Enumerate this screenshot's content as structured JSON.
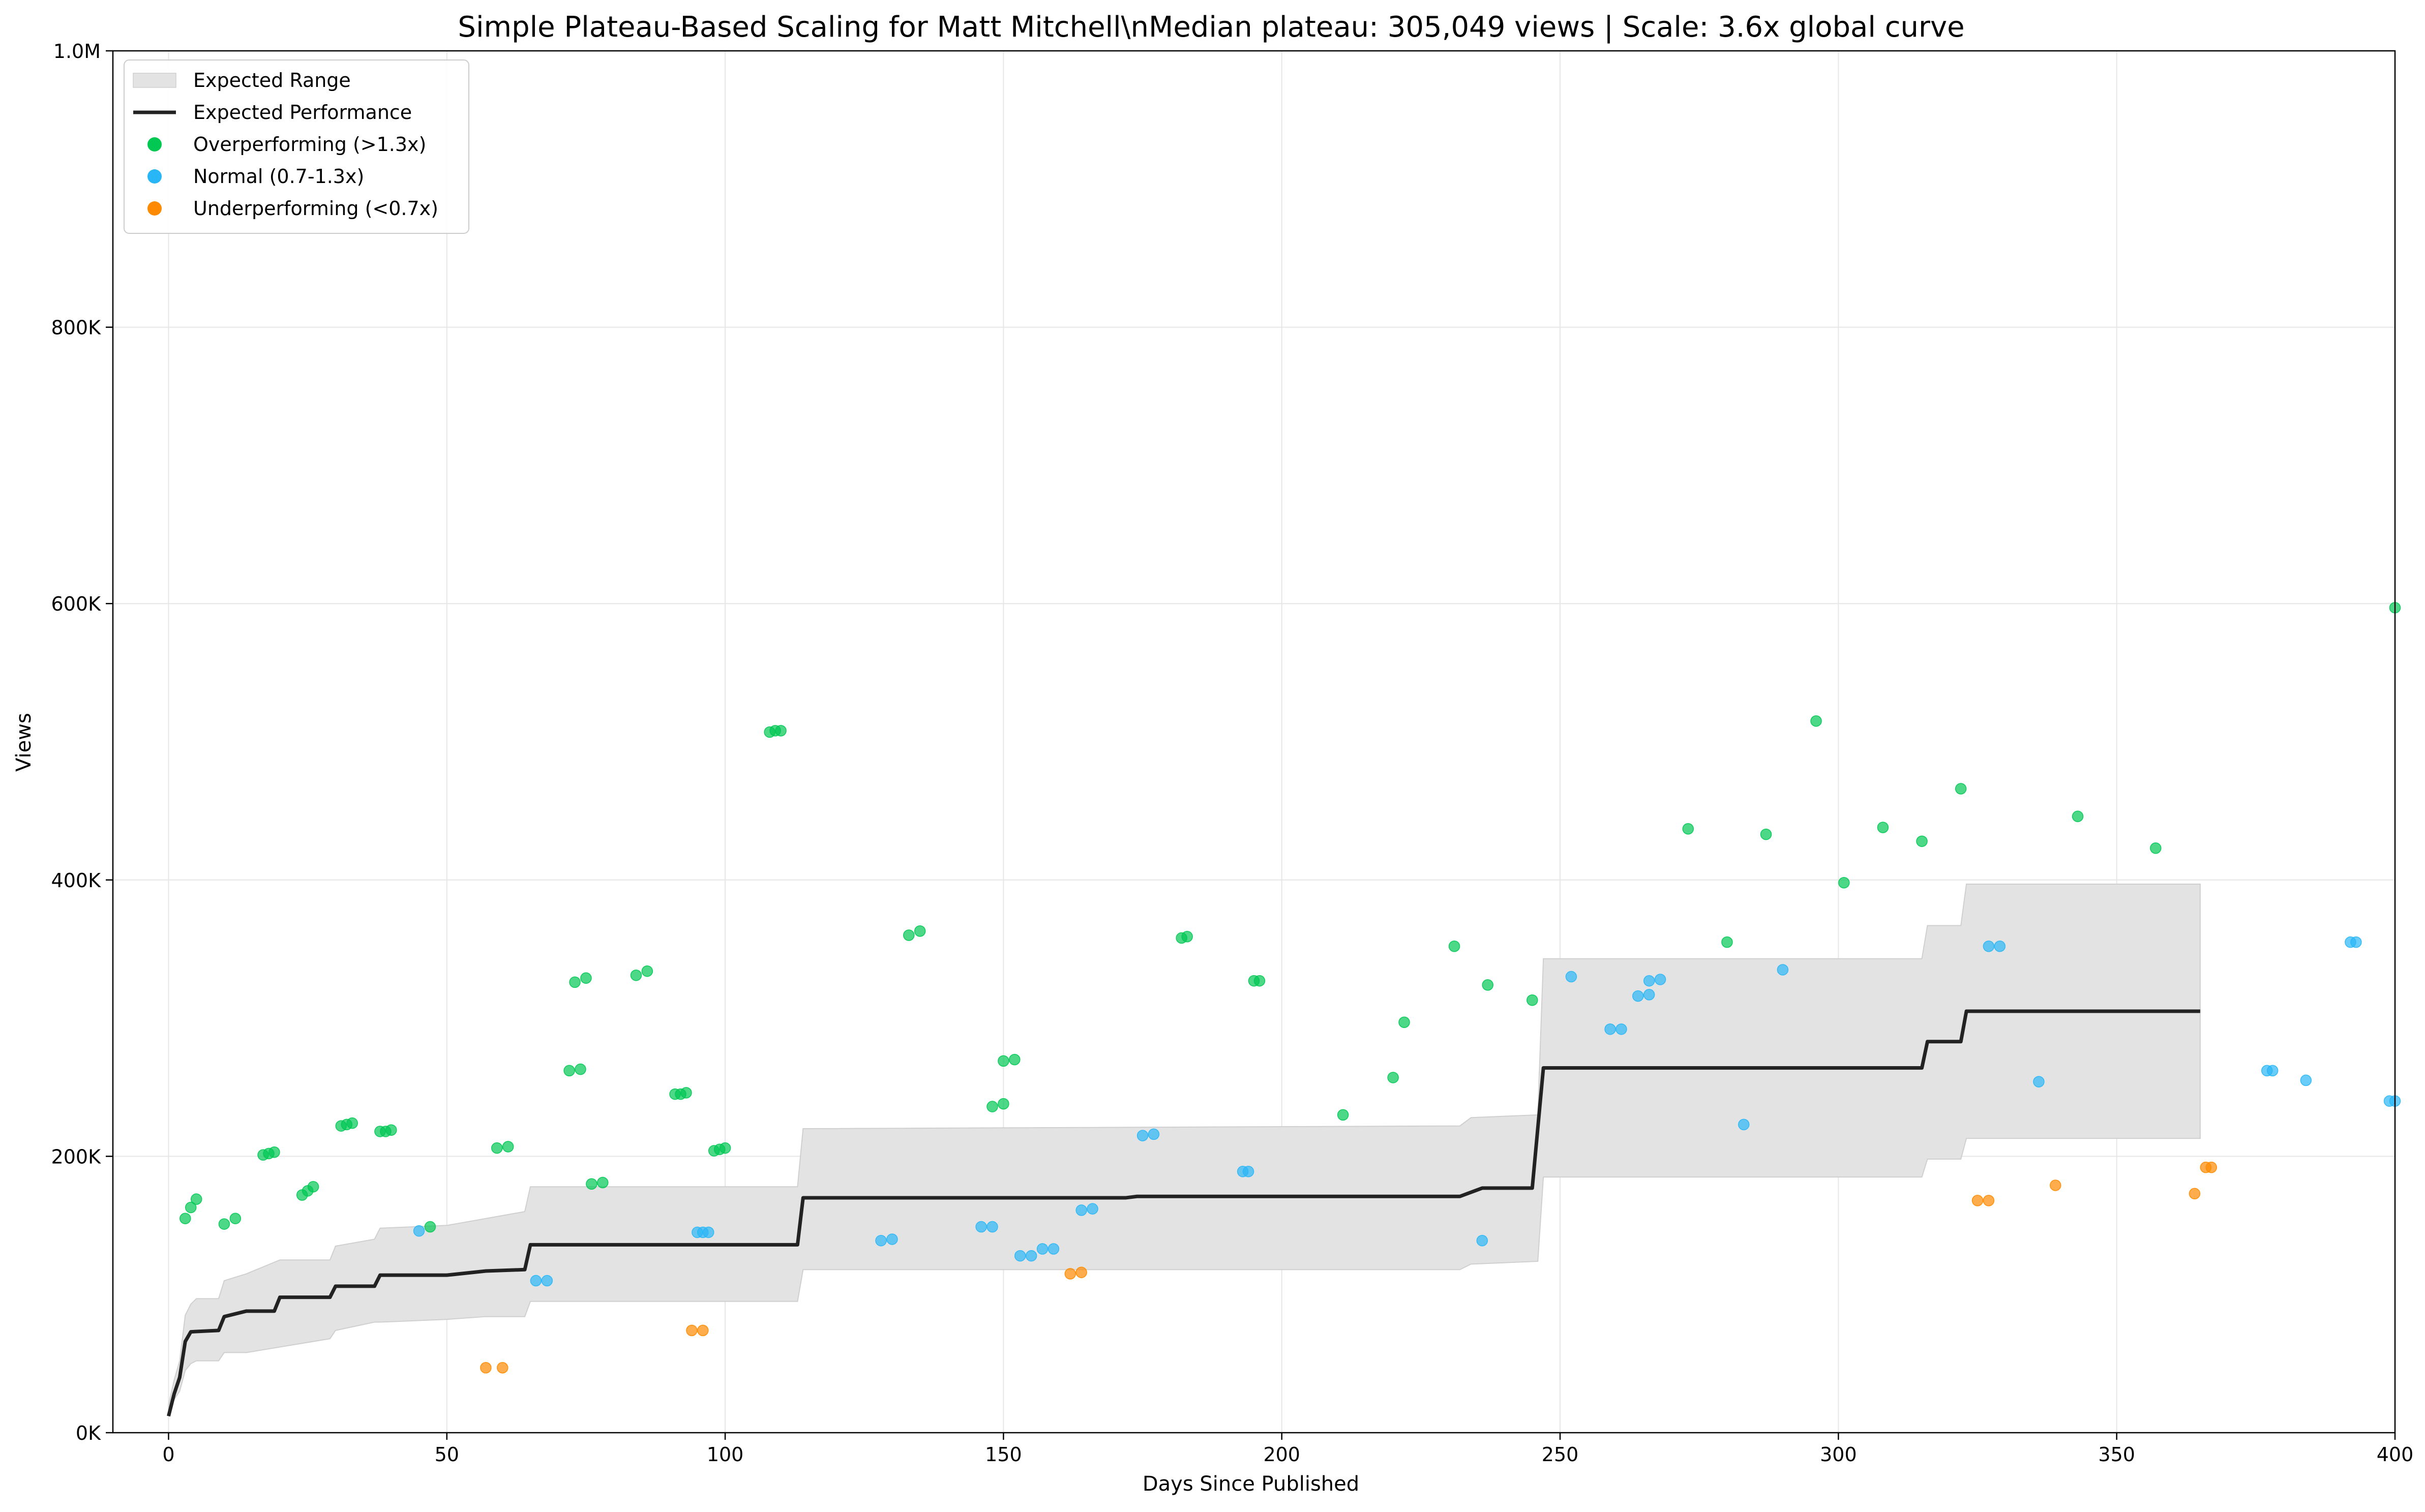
{
  "chart_data": {
    "type": "scatter",
    "title": "Simple Plateau-Based Scaling for Matt Mitchell\\nMedian plateau: 305,049 views | Scale: 3.6x global curve",
    "xlabel": "Days Since Published",
    "ylabel": "Views",
    "xlim": [
      -10,
      400
    ],
    "ylim": [
      0,
      1000000
    ],
    "x_ticks": [
      0,
      50,
      100,
      150,
      200,
      250,
      300,
      350,
      400
    ],
    "y_ticks": [
      0,
      200000,
      400000,
      600000,
      800000,
      1000000
    ],
    "y_tick_labels": [
      "0K",
      "200K",
      "400K",
      "600K",
      "800K",
      "1.0M"
    ],
    "grid": true,
    "legend_position": "upper-left",
    "legend": [
      {
        "label": "Expected Range",
        "kind": "band"
      },
      {
        "label": "Expected Performance",
        "kind": "line"
      },
      {
        "label": "Overperforming (>1.3x)",
        "kind": "marker",
        "color": "#00c853"
      },
      {
        "label": "Normal (0.7-1.3x)",
        "kind": "marker",
        "color": "#29b6f6"
      },
      {
        "label": "Underperforming (<0.7x)",
        "kind": "marker",
        "color": "#ff8a00"
      }
    ],
    "colors": {
      "over": "#00c853",
      "normal": "#29b6f6",
      "under": "#ff8a00",
      "band": "#e3e3e3",
      "line": "#222222"
    },
    "expected_range": [
      {
        "x": 0,
        "low": 12000,
        "high": 20000
      },
      {
        "x": 1,
        "low": 24000,
        "high": 38000
      },
      {
        "x": 2,
        "low": 30000,
        "high": 52000
      },
      {
        "x": 3,
        "low": 45000,
        "high": 85000
      },
      {
        "x": 4,
        "low": 50000,
        "high": 93000
      },
      {
        "x": 5,
        "low": 52000,
        "high": 97000
      },
      {
        "x": 9,
        "low": 52000,
        "high": 97000
      },
      {
        "x": 10,
        "low": 58000,
        "high": 110000
      },
      {
        "x": 14,
        "low": 58000,
        "high": 115000
      },
      {
        "x": 20,
        "low": 62000,
        "high": 125000
      },
      {
        "x": 29,
        "low": 68000,
        "high": 125000
      },
      {
        "x": 30,
        "low": 74000,
        "high": 135000
      },
      {
        "x": 37,
        "low": 80000,
        "high": 140000
      },
      {
        "x": 38,
        "low": 80000,
        "high": 148000
      },
      {
        "x": 50,
        "low": 82000,
        "high": 150000
      },
      {
        "x": 57,
        "low": 84000,
        "high": 155000
      },
      {
        "x": 64,
        "low": 84000,
        "high": 160000
      },
      {
        "x": 65,
        "low": 95000,
        "high": 178000
      },
      {
        "x": 113,
        "low": 95000,
        "high": 178000
      },
      {
        "x": 114,
        "low": 118000,
        "high": 220000
      },
      {
        "x": 232,
        "low": 118000,
        "high": 222000
      },
      {
        "x": 234,
        "low": 122000,
        "high": 228000
      },
      {
        "x": 246,
        "low": 124000,
        "high": 230000
      },
      {
        "x": 247,
        "low": 185000,
        "high": 343000
      },
      {
        "x": 315,
        "low": 185000,
        "high": 343000
      },
      {
        "x": 316,
        "low": 198000,
        "high": 367000
      },
      {
        "x": 322,
        "low": 198000,
        "high": 367000
      },
      {
        "x": 323,
        "low": 213000,
        "high": 397000
      },
      {
        "x": 365,
        "low": 213000,
        "high": 397000
      }
    ],
    "expected_performance": [
      {
        "x": 0,
        "y": 12000
      },
      {
        "x": 1,
        "y": 28000
      },
      {
        "x": 2,
        "y": 40000
      },
      {
        "x": 3,
        "y": 66000
      },
      {
        "x": 4,
        "y": 73000
      },
      {
        "x": 9,
        "y": 74000
      },
      {
        "x": 10,
        "y": 84000
      },
      {
        "x": 14,
        "y": 88000
      },
      {
        "x": 19,
        "y": 88000
      },
      {
        "x": 20,
        "y": 98000
      },
      {
        "x": 29,
        "y": 98000
      },
      {
        "x": 30,
        "y": 106000
      },
      {
        "x": 37,
        "y": 106000
      },
      {
        "x": 38,
        "y": 114000
      },
      {
        "x": 50,
        "y": 114000
      },
      {
        "x": 57,
        "y": 117000
      },
      {
        "x": 64,
        "y": 118000
      },
      {
        "x": 65,
        "y": 136000
      },
      {
        "x": 113,
        "y": 136000
      },
      {
        "x": 114,
        "y": 170000
      },
      {
        "x": 172,
        "y": 170000
      },
      {
        "x": 174,
        "y": 171000
      },
      {
        "x": 232,
        "y": 171000
      },
      {
        "x": 234,
        "y": 174000
      },
      {
        "x": 236,
        "y": 177000
      },
      {
        "x": 245,
        "y": 177000
      },
      {
        "x": 247,
        "y": 264000
      },
      {
        "x": 315,
        "y": 264000
      },
      {
        "x": 316,
        "y": 283000
      },
      {
        "x": 322,
        "y": 283000
      },
      {
        "x": 323,
        "y": 305000
      },
      {
        "x": 365,
        "y": 305000
      }
    ],
    "series": [
      {
        "name": "Overperforming (>1.3x)",
        "category": "over",
        "points": [
          [
            3,
            155000
          ],
          [
            4,
            163000
          ],
          [
            5,
            169000
          ],
          [
            10,
            151000
          ],
          [
            12,
            155000
          ],
          [
            17,
            201000
          ],
          [
            18,
            202000
          ],
          [
            19,
            203000
          ],
          [
            24,
            172000
          ],
          [
            25,
            175000
          ],
          [
            26,
            178000
          ],
          [
            31,
            222000
          ],
          [
            32,
            223000
          ],
          [
            33,
            224000
          ],
          [
            38,
            218000
          ],
          [
            39,
            218000
          ],
          [
            40,
            219000
          ],
          [
            47,
            149000
          ],
          [
            59,
            206000
          ],
          [
            61,
            207000
          ],
          [
            72,
            262000
          ],
          [
            74,
            263000
          ],
          [
            73,
            326000
          ],
          [
            75,
            329000
          ],
          [
            76,
            180000
          ],
          [
            78,
            181000
          ],
          [
            84,
            331000
          ],
          [
            86,
            334000
          ],
          [
            91,
            245000
          ],
          [
            92,
            245000
          ],
          [
            93,
            246000
          ],
          [
            98,
            204000
          ],
          [
            99,
            205000
          ],
          [
            100,
            206000
          ],
          [
            108,
            507000
          ],
          [
            109,
            508000
          ],
          [
            110,
            508000
          ],
          [
            133,
            360000
          ],
          [
            135,
            363000
          ],
          [
            148,
            236000
          ],
          [
            150,
            238000
          ],
          [
            150,
            269000
          ],
          [
            152,
            270000
          ],
          [
            182,
            358000
          ],
          [
            183,
            359000
          ],
          [
            195,
            327000
          ],
          [
            196,
            327000
          ],
          [
            211,
            230000
          ],
          [
            220,
            257000
          ],
          [
            222,
            297000
          ],
          [
            231,
            352000
          ],
          [
            237,
            324000
          ],
          [
            245,
            313000
          ],
          [
            273,
            437000
          ],
          [
            280,
            355000
          ],
          [
            287,
            433000
          ],
          [
            296,
            515000
          ],
          [
            301,
            398000
          ],
          [
            308,
            438000
          ],
          [
            315,
            428000
          ],
          [
            322,
            466000
          ],
          [
            343,
            446000
          ],
          [
            357,
            423000
          ],
          [
            400,
            597000
          ]
        ]
      },
      {
        "name": "Normal (0.7-1.3x)",
        "category": "normal",
        "points": [
          [
            45,
            146000
          ],
          [
            66,
            110000
          ],
          [
            68,
            110000
          ],
          [
            95,
            145000
          ],
          [
            96,
            145000
          ],
          [
            97,
            145000
          ],
          [
            128,
            139000
          ],
          [
            130,
            140000
          ],
          [
            146,
            149000
          ],
          [
            148,
            149000
          ],
          [
            153,
            128000
          ],
          [
            155,
            128000
          ],
          [
            157,
            133000
          ],
          [
            159,
            133000
          ],
          [
            164,
            161000
          ],
          [
            166,
            162000
          ],
          [
            175,
            215000
          ],
          [
            177,
            216000
          ],
          [
            193,
            189000
          ],
          [
            194,
            189000
          ],
          [
            236,
            139000
          ],
          [
            252,
            330000
          ],
          [
            259,
            292000
          ],
          [
            261,
            292000
          ],
          [
            264,
            316000
          ],
          [
            266,
            317000
          ],
          [
            266,
            327000
          ],
          [
            268,
            328000
          ],
          [
            283,
            223000
          ],
          [
            290,
            335000
          ],
          [
            327,
            352000
          ],
          [
            329,
            352000
          ],
          [
            336,
            254000
          ],
          [
            377,
            262000
          ],
          [
            378,
            262000
          ],
          [
            384,
            255000
          ],
          [
            392,
            355000
          ],
          [
            393,
            355000
          ],
          [
            399,
            240000
          ],
          [
            400,
            240000
          ]
        ]
      },
      {
        "name": "Underperforming (<0.7x)",
        "category": "under",
        "points": [
          [
            57,
            47000
          ],
          [
            60,
            47000
          ],
          [
            94,
            74000
          ],
          [
            96,
            74000
          ],
          [
            162,
            115000
          ],
          [
            164,
            116000
          ],
          [
            325,
            168000
          ],
          [
            327,
            168000
          ],
          [
            339,
            179000
          ],
          [
            364,
            173000
          ],
          [
            366,
            192000
          ],
          [
            367,
            192000
          ]
        ]
      }
    ]
  }
}
